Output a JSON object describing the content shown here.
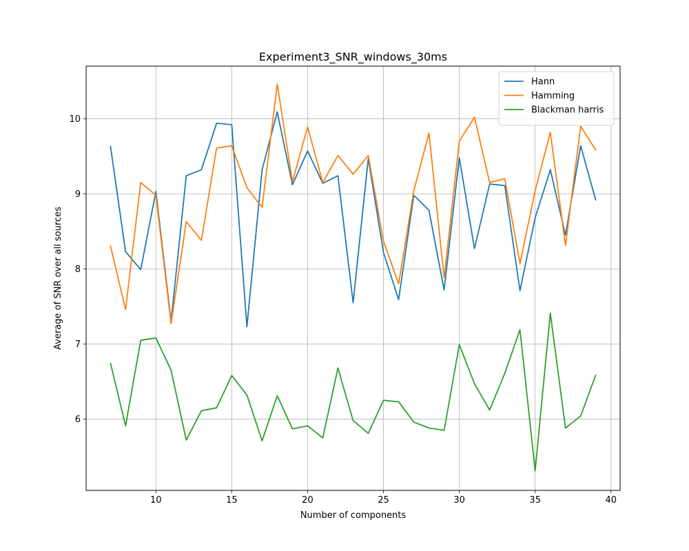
{
  "chart_data": {
    "type": "line",
    "title": "Experiment3_SNR_windows_30ms",
    "xlabel": "Number of components",
    "ylabel": "Average of SNR over all sources",
    "xlim": [
      5.4,
      40.6
    ],
    "ylim": [
      5.05,
      10.7
    ],
    "xticks": [
      10,
      15,
      20,
      25,
      30,
      35,
      40
    ],
    "yticks": [
      6,
      7,
      8,
      9,
      10
    ],
    "grid": true,
    "legend_position": "top-right",
    "x": [
      7,
      8,
      9,
      10,
      11,
      12,
      13,
      14,
      15,
      16,
      17,
      18,
      19,
      20,
      21,
      22,
      23,
      24,
      25,
      26,
      27,
      28,
      29,
      30,
      31,
      32,
      33,
      34,
      35,
      36,
      37,
      38,
      39
    ],
    "series": [
      {
        "name": "Hann",
        "color": "#1f77b4",
        "values": [
          9.64,
          8.23,
          7.99,
          9.03,
          7.3,
          9.24,
          9.32,
          9.94,
          9.92,
          7.23,
          9.32,
          10.09,
          9.12,
          9.57,
          9.14,
          9.24,
          7.55,
          9.47,
          8.22,
          7.59,
          8.98,
          8.78,
          7.72,
          9.48,
          8.27,
          9.13,
          9.11,
          7.71,
          8.68,
          9.32,
          8.45,
          9.64,
          8.91
        ]
      },
      {
        "name": "Hamming",
        "color": "#ff7f0e",
        "values": [
          8.31,
          7.46,
          9.15,
          8.98,
          7.27,
          8.63,
          8.38,
          9.61,
          9.64,
          9.08,
          8.82,
          10.46,
          9.16,
          9.89,
          9.15,
          9.51,
          9.26,
          9.51,
          8.37,
          7.8,
          9.04,
          9.81,
          7.88,
          9.7,
          10.02,
          9.15,
          9.2,
          8.07,
          9.04,
          9.82,
          8.31,
          9.9,
          9.58
        ]
      },
      {
        "name": "Blackman harris",
        "color": "#2ca02c",
        "values": [
          6.75,
          5.91,
          7.05,
          7.08,
          6.65,
          5.72,
          6.11,
          6.15,
          6.58,
          6.32,
          5.71,
          6.31,
          5.87,
          5.91,
          5.75,
          6.68,
          5.98,
          5.81,
          6.25,
          6.23,
          5.96,
          5.88,
          5.85,
          6.99,
          6.47,
          6.12,
          6.61,
          7.19,
          5.31,
          7.41,
          5.88,
          6.04,
          6.59
        ]
      }
    ]
  }
}
